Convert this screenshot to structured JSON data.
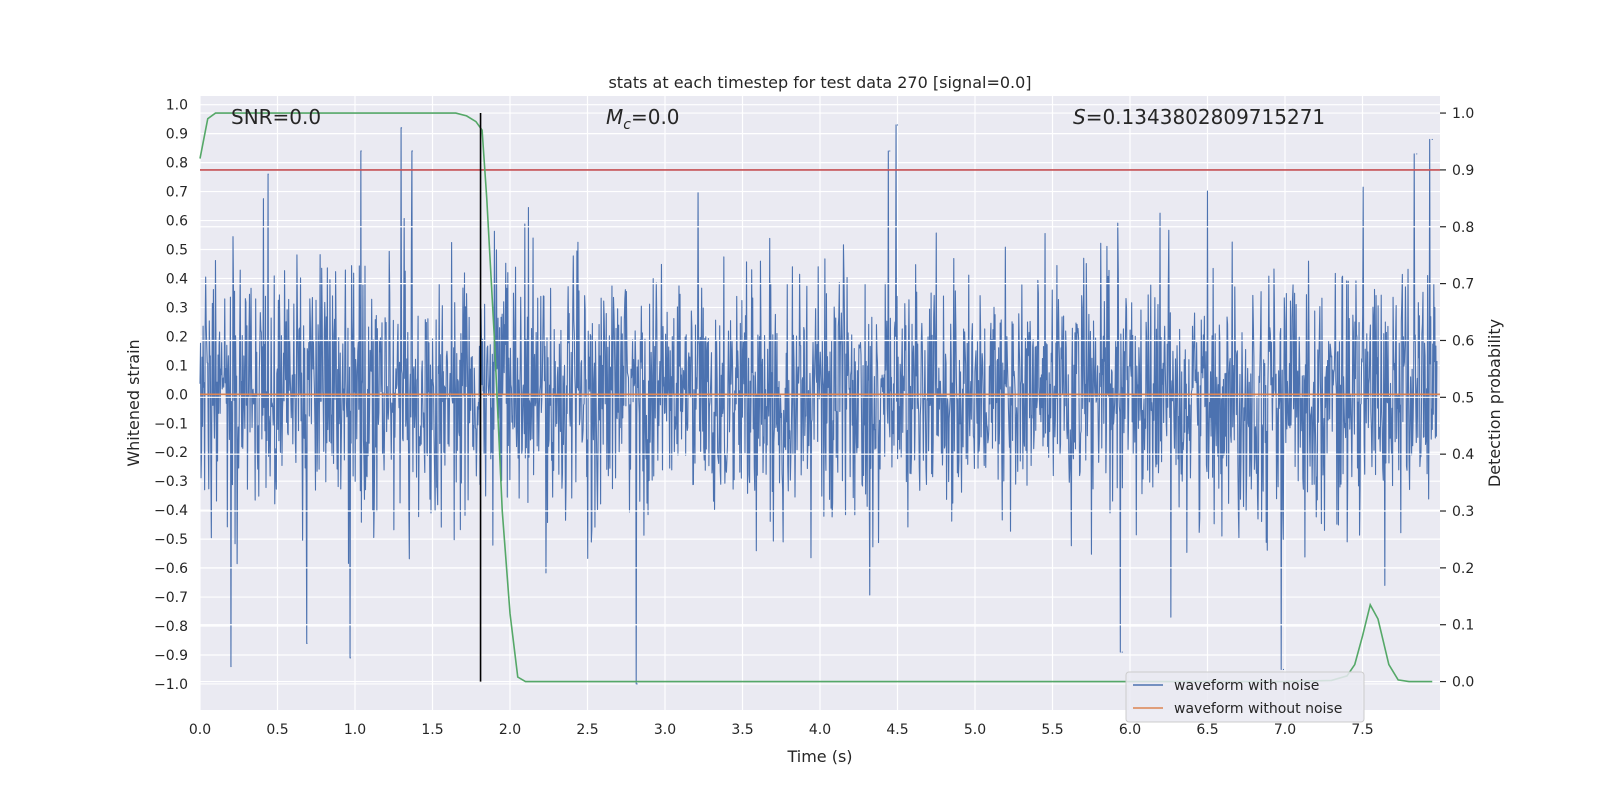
{
  "chart_data": {
    "type": "line",
    "title": "stats at each timestep for test data 270 [signal=0.0]",
    "xlabel": "Time (s)",
    "ylabel": "Whitened strain",
    "ylabel_right": "Detection probability",
    "xlim": [
      0.0,
      8.0
    ],
    "ylim": [
      -1.09,
      1.03
    ],
    "ylim_right": [
      -0.05,
      1.03
    ],
    "x_ticks": [
      0.0,
      0.5,
      1.0,
      1.5,
      2.0,
      2.5,
      3.0,
      3.5,
      4.0,
      4.5,
      5.0,
      5.5,
      6.0,
      6.5,
      7.0,
      7.5
    ],
    "x_tick_labels": [
      "0.0",
      "0.5",
      "1.0",
      "1.5",
      "2.0",
      "2.5",
      "3.0",
      "3.5",
      "4.0",
      "4.5",
      "5.0",
      "5.5",
      "6.0",
      "6.5",
      "7.0",
      "7.5"
    ],
    "y_ticks": [
      1.0,
      0.9,
      0.8,
      0.7,
      0.6,
      0.5,
      0.4,
      0.3,
      0.2,
      0.1,
      0.0,
      -0.1,
      -0.2,
      -0.3,
      -0.4,
      -0.5,
      -0.6,
      -0.7,
      -0.8,
      -0.9,
      -1.0
    ],
    "y_tick_labels": [
      "1.0",
      "0.9",
      "0.8",
      "0.7",
      "0.6",
      "0.5",
      "0.4",
      "0.3",
      "0.2",
      "0.1",
      "0.0",
      "−0.1",
      "−0.2",
      "−0.3",
      "−0.4",
      "−0.5",
      "−0.6",
      "−0.7",
      "−0.8",
      "−0.9",
      "−1.0"
    ],
    "y_right_ticks": [
      1.0,
      0.9,
      0.8,
      0.7,
      0.6,
      0.5,
      0.4,
      0.3,
      0.2,
      0.1,
      0.0
    ],
    "y_right_tick_labels": [
      "1.0",
      "0.9",
      "0.8",
      "0.7",
      "0.6",
      "0.5",
      "0.4",
      "0.3",
      "0.2",
      "0.1",
      "0.0"
    ],
    "annotations": {
      "snr": "SNR=0.0",
      "mc_symbol": "M",
      "mc_sub": "c",
      "mc_value": "=0.0",
      "s_symbol": "S",
      "s_value": "=0.1343802809715271"
    },
    "noise_series": {
      "name": "waveform with noise",
      "color": "#4c72b0",
      "description_amplitude_envelope": {
        "typical_positive": 0.45,
        "typical_negative": -0.45,
        "peak_max": 0.93,
        "peak_min": -1.0
      },
      "notable_peaks": [
        {
          "x": 0.2,
          "y": -0.94
        },
        {
          "x": 0.44,
          "y": 0.76
        },
        {
          "x": 0.69,
          "y": -0.86
        },
        {
          "x": 0.97,
          "y": -0.91
        },
        {
          "x": 1.04,
          "y": 0.84
        },
        {
          "x": 1.3,
          "y": 0.92
        },
        {
          "x": 1.37,
          "y": 0.84
        },
        {
          "x": 4.5,
          "y": 0.93
        },
        {
          "x": 4.45,
          "y": 0.84
        },
        {
          "x": 2.82,
          "y": -1.0
        },
        {
          "x": 5.95,
          "y": -0.89
        },
        {
          "x": 6.99,
          "y": -0.95
        },
        {
          "x": 7.85,
          "y": 0.83
        },
        {
          "x": 7.95,
          "y": 0.88
        }
      ]
    },
    "clean_series": {
      "name": "waveform without noise",
      "color": "#dd8452",
      "value": 0.0
    },
    "detection_probability": {
      "name": "detection probability",
      "color": "#55a868",
      "x": [
        0.0,
        0.05,
        0.1,
        0.15,
        0.5,
        1.0,
        1.5,
        1.65,
        1.72,
        1.78,
        1.82,
        1.85,
        1.9,
        1.95,
        2.0,
        2.05,
        2.1,
        3.0,
        4.0,
        5.0,
        6.0,
        7.0,
        7.3,
        7.4,
        7.45,
        7.5,
        7.55,
        7.6,
        7.67,
        7.73,
        7.8,
        7.95
      ],
      "y": [
        0.92,
        0.99,
        1.0,
        1.0,
        1.0,
        1.0,
        1.0,
        1.0,
        0.995,
        0.985,
        0.97,
        0.85,
        0.6,
        0.3,
        0.12,
        0.008,
        0.0,
        0.0,
        0.0,
        0.0,
        0.0,
        0.0,
        0.002,
        0.01,
        0.03,
        0.08,
        0.135,
        0.11,
        0.03,
        0.003,
        0.0,
        0.0
      ]
    },
    "threshold": {
      "value_right": 0.9,
      "color": "#c44e52"
    },
    "event_marker_x": 1.81,
    "legend": {
      "location": "bottom-right",
      "entries": [
        {
          "label": "waveform with noise",
          "color": "#4c72b0"
        },
        {
          "label": "waveform without noise",
          "color": "#dd8452"
        }
      ]
    },
    "grid": true,
    "background": "#eaeaf2"
  }
}
